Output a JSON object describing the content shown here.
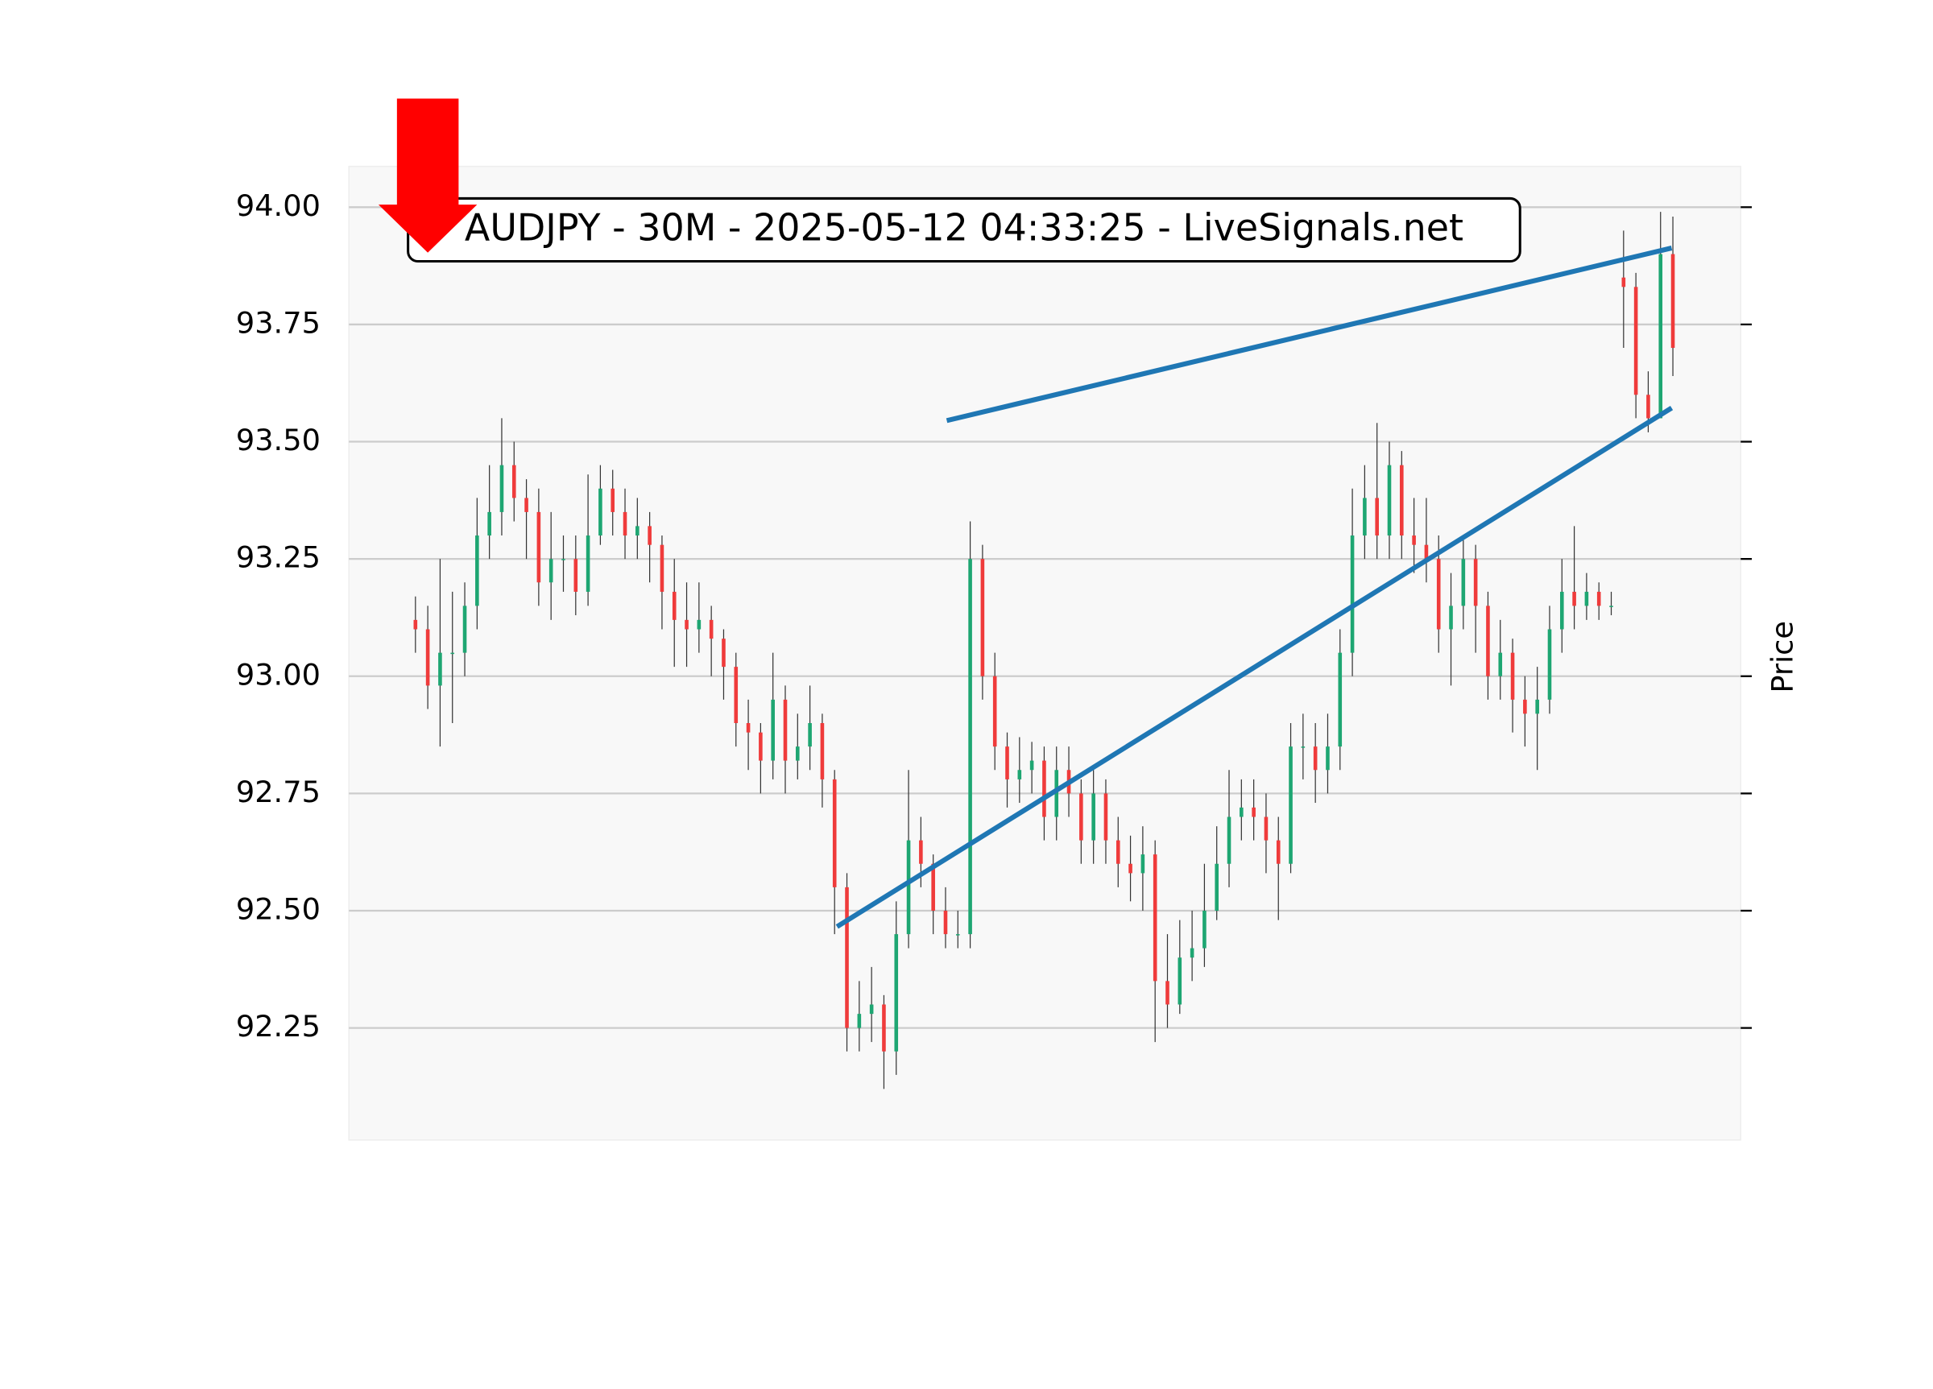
{
  "chart_data": {
    "type": "candlestick",
    "title": "AUDJPY - 30M - 2025-05-12 04:33:25 - LiveSignals.net",
    "y_label": "Price",
    "open": [
      93.12,
      93.1,
      92.98,
      93.05,
      93.05,
      93.15,
      93.3,
      93.35,
      93.45,
      93.38,
      93.35,
      93.2,
      93.25,
      93.25,
      93.18,
      93.3,
      93.4,
      93.35,
      93.3,
      93.32,
      93.28,
      93.18,
      93.12,
      93.1,
      93.12,
      93.08,
      93.02,
      92.9,
      92.88,
      92.82,
      92.95,
      92.82,
      92.85,
      92.9,
      92.78,
      92.55,
      92.25,
      92.28,
      92.3,
      92.2,
      92.45,
      92.65,
      92.6,
      92.5,
      92.45,
      92.45,
      93.25,
      93.0,
      92.85,
      92.78,
      92.8,
      92.82,
      92.7,
      92.8,
      92.75,
      92.65,
      92.75,
      92.65,
      92.6,
      92.58,
      92.62,
      92.35,
      92.3,
      92.4,
      92.42,
      92.5,
      92.6,
      92.7,
      92.72,
      92.7,
      92.65,
      92.6,
      92.85,
      92.85,
      92.8,
      92.85,
      93.05,
      93.3,
      93.38,
      93.3,
      93.45,
      93.3,
      93.28,
      93.25,
      93.1,
      93.15,
      93.25,
      93.15,
      93.0,
      93.05,
      92.95,
      92.92,
      92.95,
      93.1,
      93.18,
      93.15,
      93.18,
      93.15,
      93.85,
      93.83,
      93.6,
      93.55,
      93.9
    ],
    "high": [
      93.17,
      93.15,
      93.25,
      93.18,
      93.2,
      93.38,
      93.45,
      93.55,
      93.5,
      93.42,
      93.4,
      93.35,
      93.3,
      93.3,
      93.43,
      93.45,
      93.44,
      93.4,
      93.38,
      93.35,
      93.3,
      93.25,
      93.2,
      93.2,
      93.15,
      93.1,
      93.05,
      92.95,
      92.9,
      93.05,
      92.98,
      92.92,
      92.98,
      92.92,
      92.8,
      92.58,
      92.35,
      92.38,
      92.32,
      92.52,
      92.8,
      92.7,
      92.62,
      92.55,
      92.5,
      93.33,
      93.28,
      93.05,
      92.88,
      92.87,
      92.86,
      92.85,
      92.85,
      92.85,
      92.78,
      92.8,
      92.78,
      92.7,
      92.66,
      92.68,
      92.65,
      92.45,
      92.48,
      92.5,
      92.6,
      92.68,
      92.8,
      92.78,
      92.78,
      92.75,
      92.7,
      92.9,
      92.92,
      92.9,
      92.92,
      93.1,
      93.4,
      93.45,
      93.54,
      93.5,
      93.48,
      93.38,
      93.38,
      93.3,
      93.22,
      93.3,
      93.28,
      93.18,
      93.12,
      93.08,
      93.0,
      93.02,
      93.15,
      93.25,
      93.32,
      93.22,
      93.2,
      93.18,
      93.95,
      93.86,
      93.65,
      93.99,
      93.98
    ],
    "low": [
      93.05,
      92.93,
      92.85,
      92.9,
      93.0,
      93.1,
      93.25,
      93.3,
      93.33,
      93.25,
      93.15,
      93.12,
      93.18,
      93.13,
      93.15,
      93.28,
      93.3,
      93.25,
      93.25,
      93.2,
      93.1,
      93.02,
      93.02,
      93.05,
      93.0,
      92.95,
      92.85,
      92.8,
      92.75,
      92.78,
      92.75,
      92.78,
      92.8,
      92.72,
      92.45,
      92.2,
      92.2,
      92.22,
      92.12,
      92.15,
      92.42,
      92.55,
      92.45,
      92.42,
      92.42,
      92.42,
      92.95,
      92.8,
      92.72,
      92.73,
      92.75,
      92.65,
      92.65,
      92.7,
      92.6,
      92.6,
      92.6,
      92.55,
      92.52,
      92.5,
      92.22,
      92.25,
      92.28,
      92.35,
      92.38,
      92.48,
      92.55,
      92.65,
      92.65,
      92.58,
      92.48,
      92.58,
      92.78,
      92.73,
      92.75,
      92.8,
      93.0,
      93.25,
      93.25,
      93.25,
      93.25,
      93.22,
      93.2,
      93.05,
      92.98,
      93.1,
      93.05,
      92.95,
      92.95,
      92.88,
      92.85,
      92.8,
      92.92,
      93.05,
      93.1,
      93.12,
      93.12,
      93.13,
      93.7,
      93.55,
      93.52,
      93.55,
      93.64
    ],
    "close": [
      93.1,
      92.98,
      93.05,
      93.05,
      93.15,
      93.3,
      93.35,
      93.45,
      93.38,
      93.35,
      93.2,
      93.25,
      93.25,
      93.18,
      93.3,
      93.4,
      93.35,
      93.3,
      93.32,
      93.28,
      93.18,
      93.12,
      93.1,
      93.12,
      93.08,
      93.02,
      92.9,
      92.88,
      92.82,
      92.95,
      92.82,
      92.85,
      92.9,
      92.78,
      92.55,
      92.25,
      92.28,
      92.3,
      92.2,
      92.45,
      92.65,
      92.6,
      92.5,
      92.45,
      92.45,
      93.25,
      93.0,
      92.85,
      92.78,
      92.8,
      92.82,
      92.7,
      92.8,
      92.75,
      92.65,
      92.75,
      92.65,
      92.6,
      92.58,
      92.62,
      92.35,
      92.3,
      92.4,
      92.42,
      92.5,
      92.6,
      92.7,
      92.72,
      92.7,
      92.65,
      92.6,
      92.85,
      92.85,
      92.8,
      92.85,
      93.05,
      93.3,
      93.38,
      93.3,
      93.45,
      93.3,
      93.28,
      93.25,
      93.1,
      93.15,
      93.25,
      93.15,
      93.0,
      93.05,
      92.95,
      92.92,
      92.95,
      93.1,
      93.18,
      93.15,
      93.18,
      93.15,
      93.15,
      93.83,
      93.6,
      93.55,
      93.9,
      93.7
    ],
    "up_color": "#1ea672",
    "down_color": "#ef3b3b",
    "wick_color": "#333333",
    "xlim": [
      -5.4,
      107.5
    ],
    "ylim": [
      92.011,
      94.087
    ],
    "yticks": [
      {
        "value": 92.25,
        "label": "92.25"
      },
      {
        "value": 92.5,
        "label": "92.50"
      },
      {
        "value": 92.75,
        "label": "92.75"
      },
      {
        "value": 93,
        "label": "93.00"
      },
      {
        "value": 93.25,
        "label": "93.25"
      },
      {
        "value": 93.5,
        "label": "93.50"
      },
      {
        "value": 93.75,
        "label": "93.75"
      },
      {
        "value": 94,
        "label": "94.00"
      }
    ],
    "grid": true,
    "trendlines": [
      {
        "x": [
          43.1,
          101.9
        ],
        "y": [
          93.545,
          93.913
        ]
      },
      {
        "x": [
          34.2,
          101.9
        ],
        "y": [
          92.466,
          93.572
        ]
      }
    ],
    "trendline_color": "#1f77b4"
  }
}
